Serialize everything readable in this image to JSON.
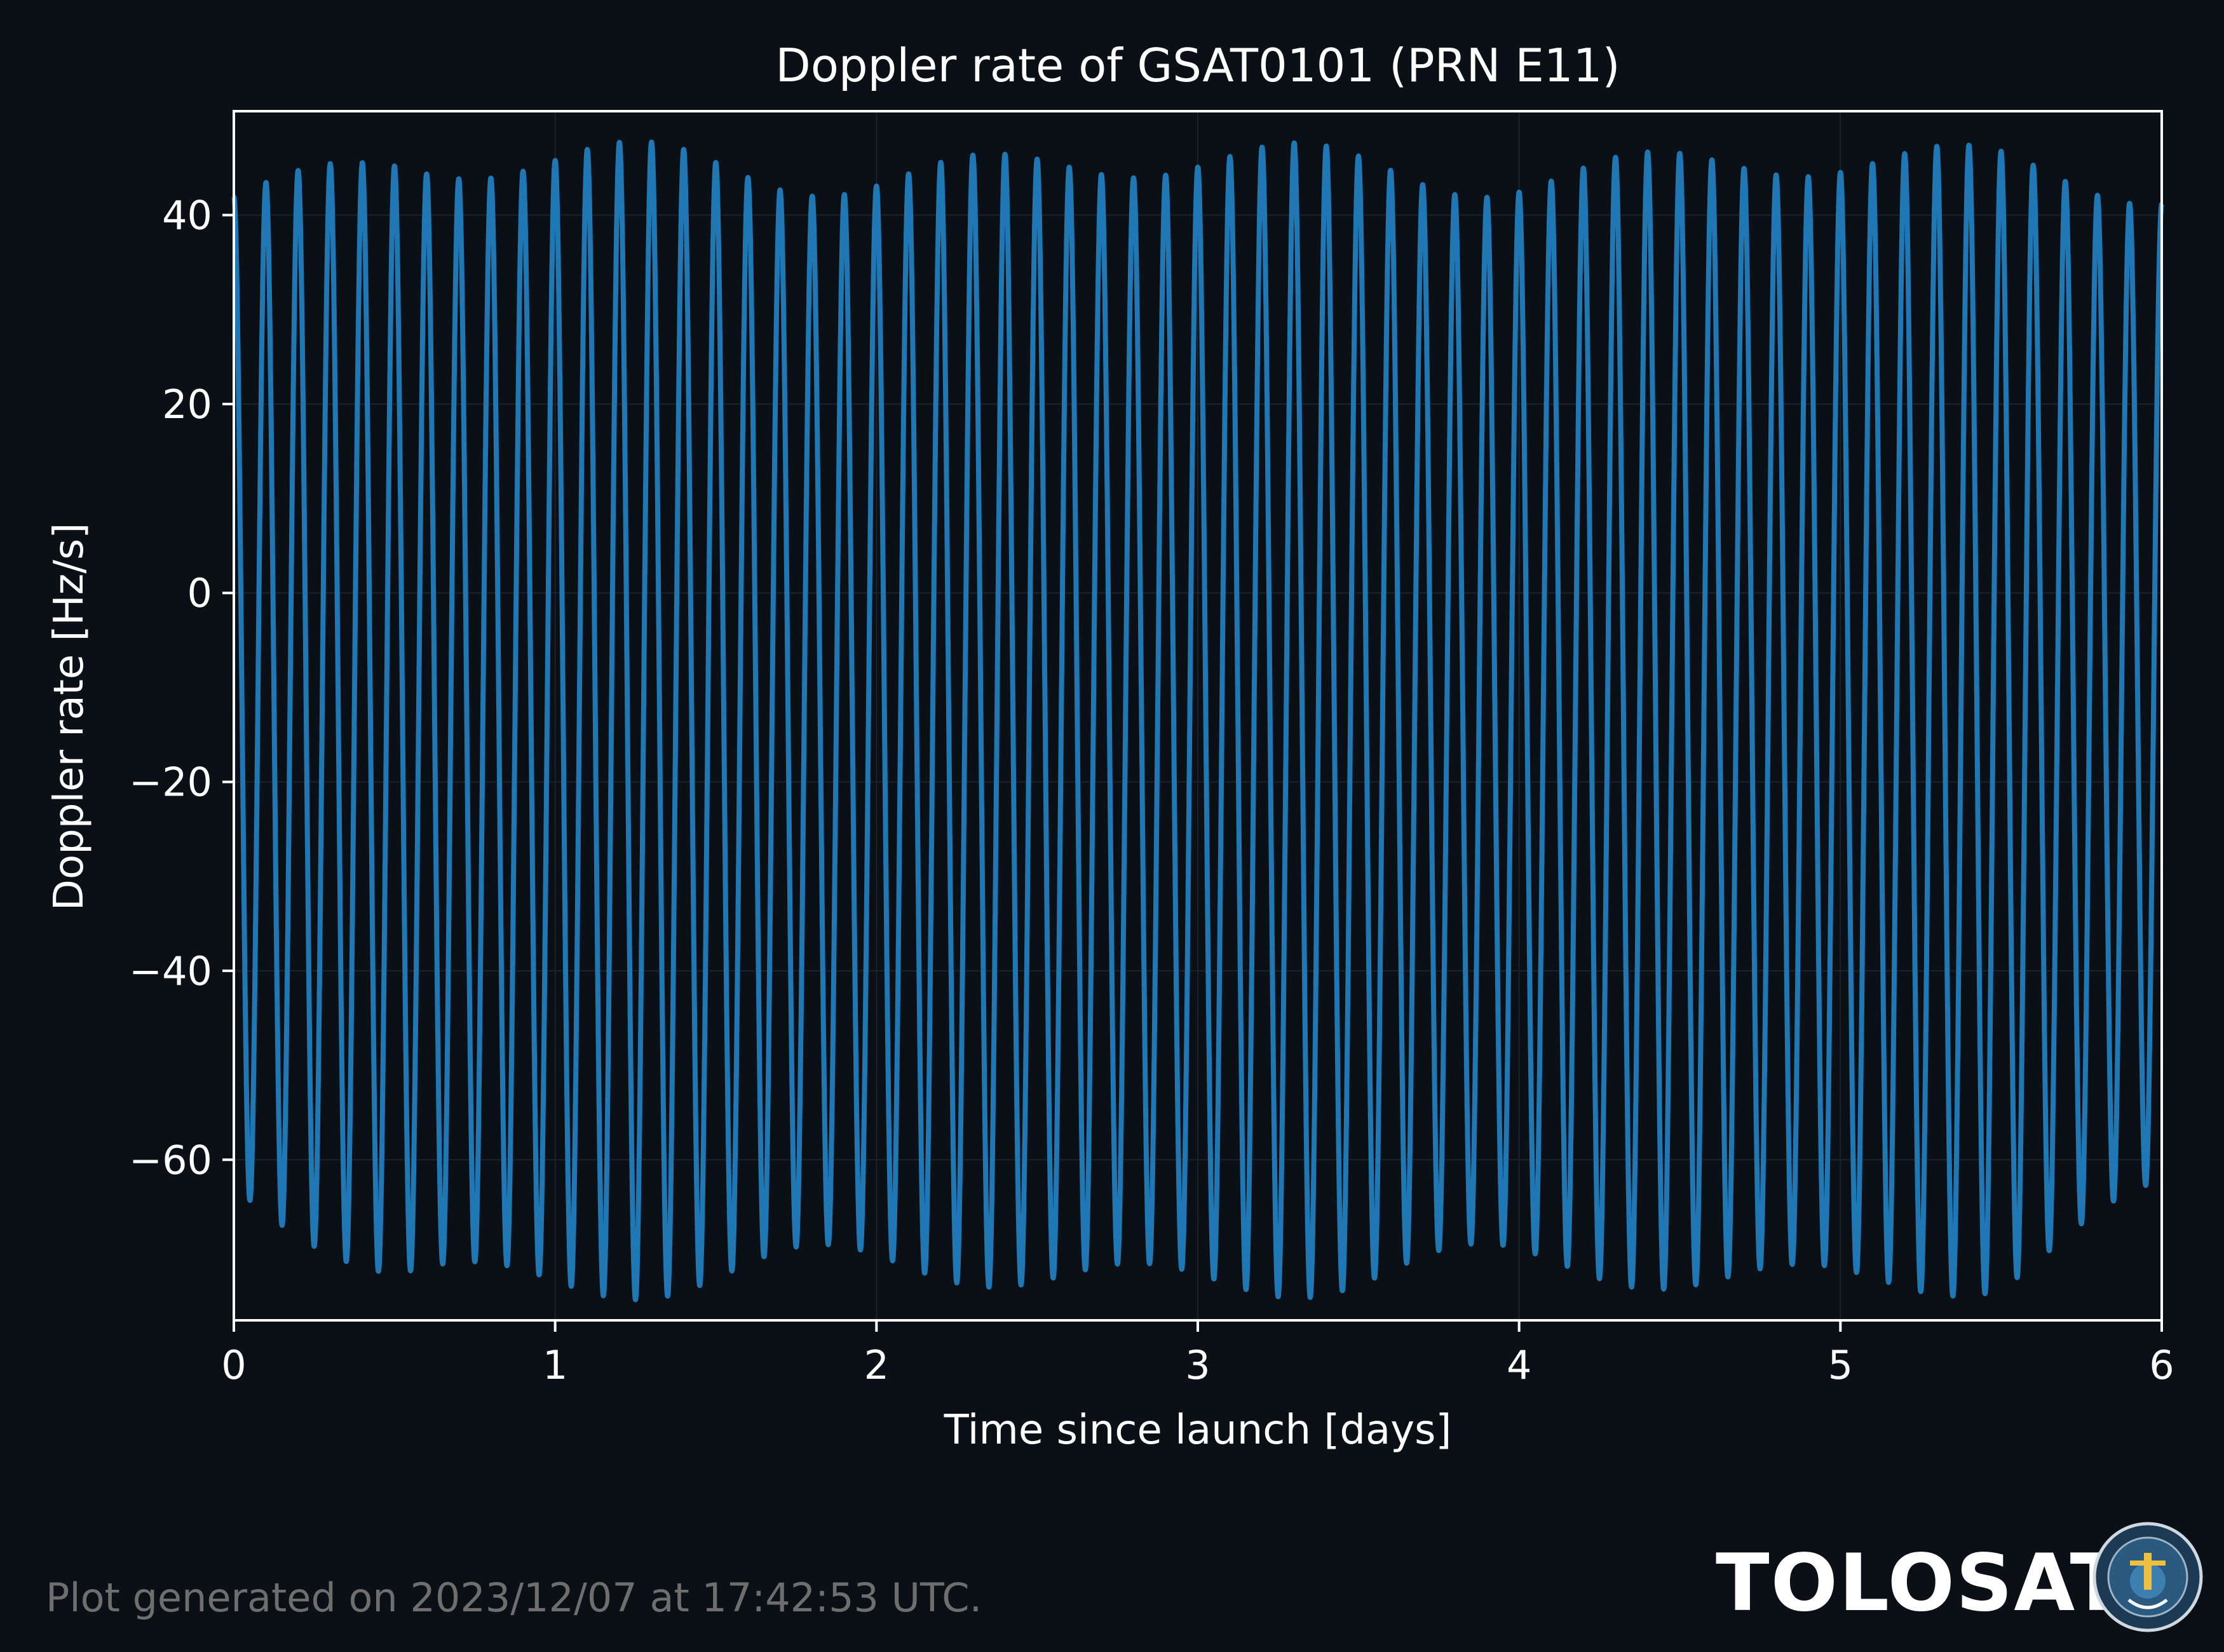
{
  "chart_data": {
    "type": "line",
    "title": "Doppler rate of GSAT0101 (PRN E11)",
    "xlabel": "Time since launch [days]",
    "ylabel": "Doppler rate [Hz/s]",
    "xlim": [
      0,
      6
    ],
    "ylim": [
      -77,
      51
    ],
    "xticks": [
      0,
      1,
      2,
      3,
      4,
      5,
      6
    ],
    "yticks": [
      40,
      20,
      0,
      -20,
      -40,
      -60
    ],
    "grid": true,
    "legend": "none",
    "colors": {
      "line": "#1f77b4",
      "background": "#0b0f16",
      "axes": "#ffffff"
    },
    "series": [
      {
        "x": [
          0.0,
          0.5,
          1.0,
          1.5,
          2.0,
          2.5,
          3.0,
          3.5,
          4.0,
          4.5,
          5.0,
          5.5,
          6.0
        ],
        "y_max": [
          43,
          45,
          45,
          45,
          45,
          45,
          45,
          45,
          45,
          45,
          45,
          45,
          44
        ],
        "y_min": [
          -64,
          -72,
          -72,
          -72,
          -72,
          -72,
          -72,
          -72,
          -72,
          -72,
          -72,
          -72,
          -65
        ],
        "oscillations_per_day": 10
      }
    ]
  },
  "footer": {
    "generated": "Plot generated on 2023/12/07 at 17:42:53 UTC.",
    "brand": "TOLOSAT"
  }
}
